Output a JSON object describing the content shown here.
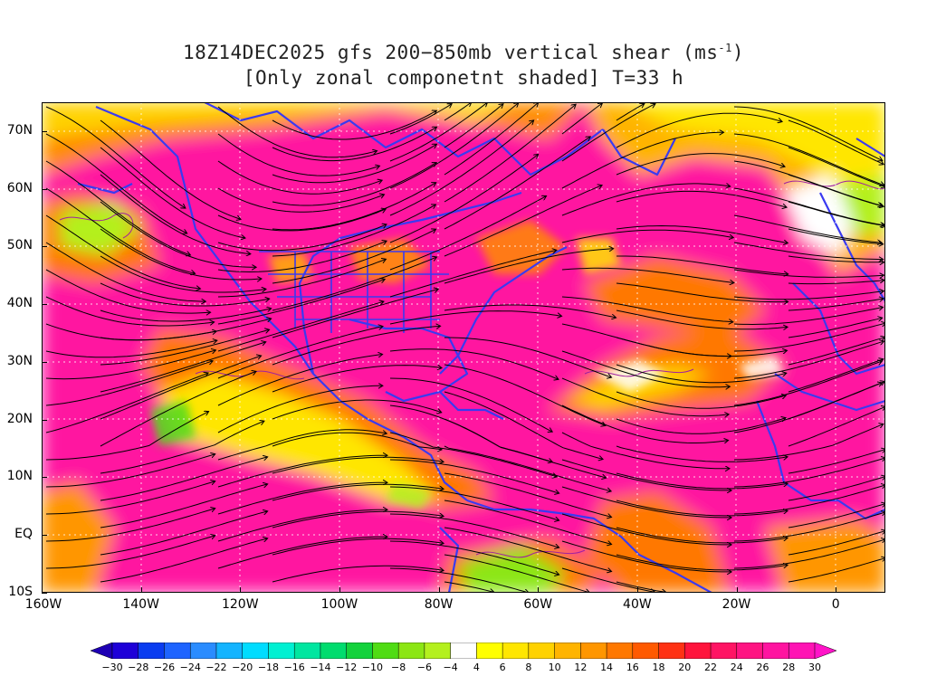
{
  "title": {
    "line1_prefix": "18Z14DEC2025 gfs 200−850mb vertical shear (ms",
    "line1_sup": "-1",
    "line1_suffix": ")",
    "line2": "[Only zonal componetnt shaded] T=33 h"
  },
  "map": {
    "projection": "cylindrical",
    "lon_range": [
      -160,
      10
    ],
    "lat_range": [
      -10,
      75
    ],
    "lat_labels": [
      "70N",
      "60N",
      "50N",
      "40N",
      "30N",
      "20N",
      "10N",
      "EQ",
      "10S"
    ],
    "lon_labels": [
      "160W",
      "140W",
      "120W",
      "100W",
      "80W",
      "60W",
      "40W",
      "20W",
      "0"
    ],
    "grid": "dotted",
    "overlay": "streamlines",
    "coastline_color": "#3a3af0",
    "contour_color": "#a020a0"
  },
  "colorbar": {
    "labels": [
      "−30",
      "−28",
      "−26",
      "−24",
      "−22",
      "−20",
      "−18",
      "−16",
      "−14",
      "−12",
      "−10",
      "−8",
      "−6",
      "−4",
      "4",
      "6",
      "8",
      "10",
      "12",
      "14",
      "16",
      "18",
      "20",
      "22",
      "24",
      "26",
      "28",
      "30"
    ],
    "colors": [
      "#1e00d8",
      "#0a3cf0",
      "#1e64ff",
      "#2a8cff",
      "#14b4ff",
      "#00dcff",
      "#00f0d2",
      "#00e6a0",
      "#00dc6e",
      "#14d23c",
      "#50dc14",
      "#8ce614",
      "#b4f01e",
      "#ffffff",
      "#ffff00",
      "#ffe600",
      "#ffd200",
      "#ffb400",
      "#ff9600",
      "#ff7800",
      "#ff5a00",
      "#ff3214",
      "#ff143c",
      "#ff1464",
      "#ff1482",
      "#ff14a0",
      "#ff14b4"
    ]
  }
}
